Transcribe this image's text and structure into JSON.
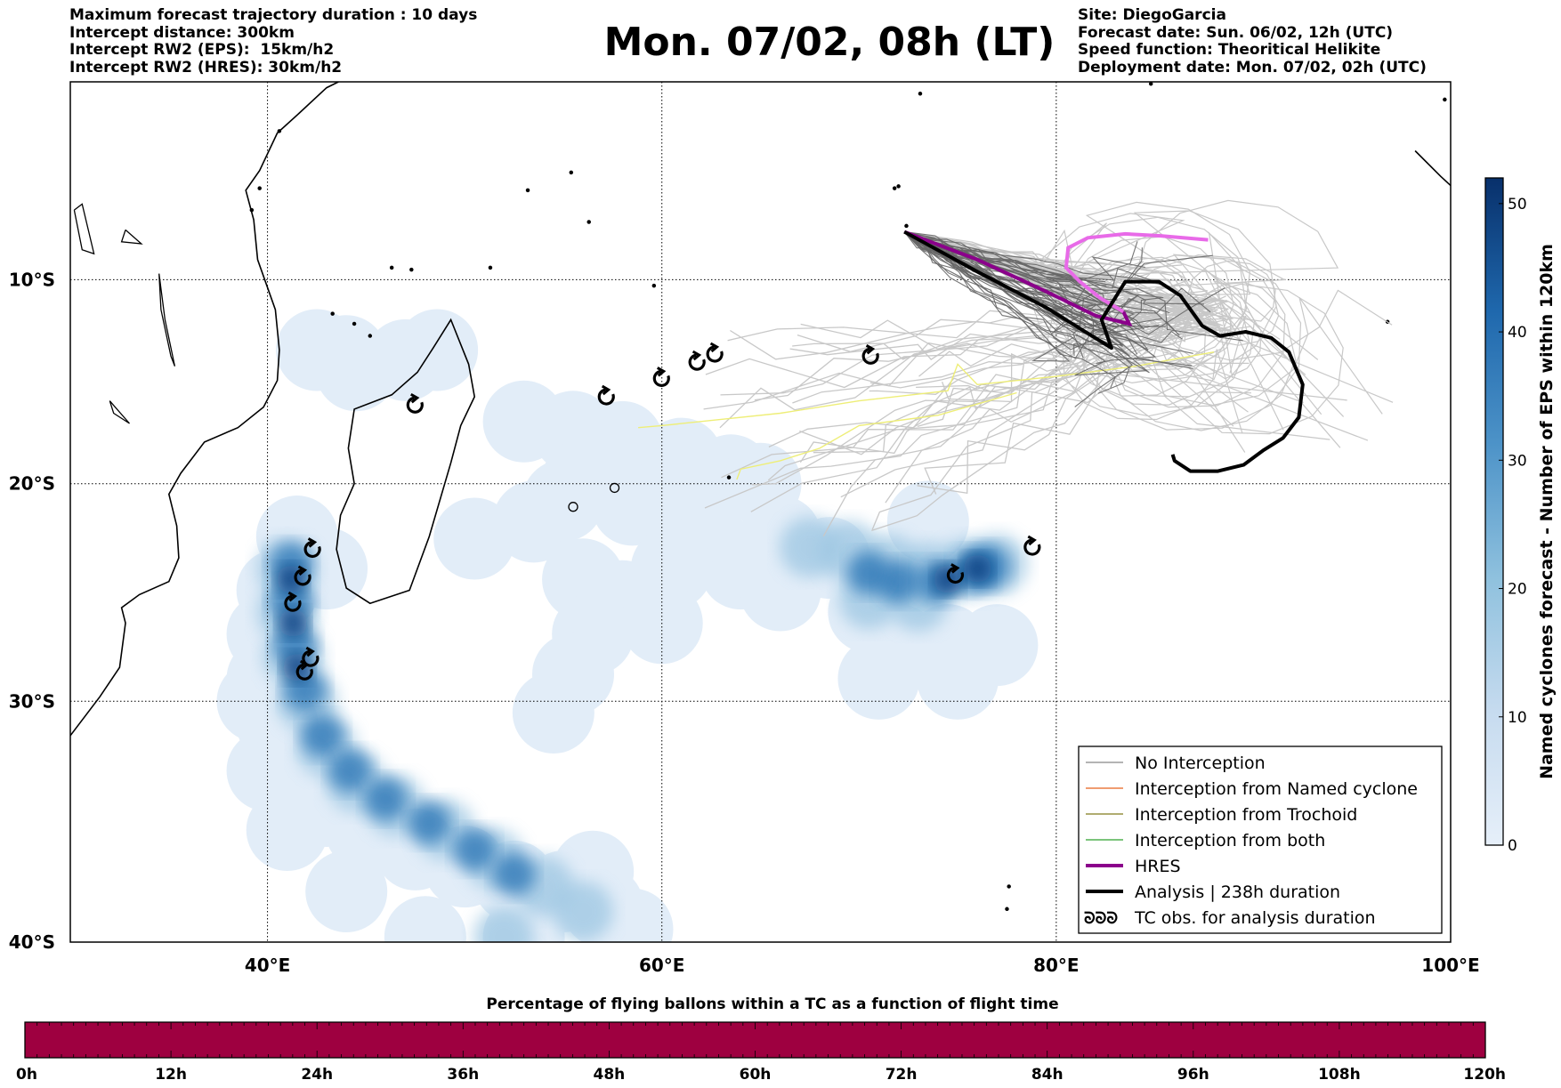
{
  "header": {
    "left_lines": [
      "Maximum forecast trajectory duration : 10 days",
      "Intercept distance: 300km",
      "Intercept RW2 (EPS):  15km/h2",
      "Intercept RW2 (HRES): 30km/h2"
    ],
    "right_lines": [
      "Site: DiegoGarcia",
      "Forecast date: Sun. 06/02, 12h (UTC)",
      "Speed function: Theoritical Helikite",
      "Deployment date: Mon. 07/02, 02h (UTC)"
    ],
    "title": "Mon. 07/02, 08h (LT)"
  },
  "map": {
    "lon_range": [
      30,
      100
    ],
    "lat_range": [
      -40,
      0
    ],
    "lat_labels": [
      "10°S",
      "20°S",
      "30°S",
      "40°S"
    ],
    "lon_labels": [
      "40°E",
      "60°E",
      "80°E",
      "100°E"
    ],
    "gridlines": true
  },
  "legend": {
    "items": [
      {
        "label": "No Interception",
        "color": "#888888"
      },
      {
        "label": "Interception from Named cyclone",
        "color": "#e8601c"
      },
      {
        "label": "Interception from Trochoid",
        "color": "#807a1a"
      },
      {
        "label": "Interception from both",
        "color": "#2ca02c"
      },
      {
        "label": "HRES",
        "color": "#8b008b"
      },
      {
        "label": "Analysis | 238h duration",
        "color": "#000000"
      },
      {
        "label": "TC obs. for analysis duration",
        "color": "#000000",
        "symbol": "ᘐᘐᘐ"
      }
    ]
  },
  "colorbar_right": {
    "label": "Named cyclones forecast - Number of EPS within 120km",
    "ticks": [
      "0",
      "10",
      "20",
      "30",
      "40",
      "50"
    ],
    "range": [
      0,
      52
    ]
  },
  "colorbar_bottom": {
    "title": "Percentage of flying ballons within a TC as a function of flight time",
    "ticks": [
      "0h",
      "12h",
      "24h",
      "36h",
      "48h",
      "60h",
      "72h",
      "84h",
      "96h",
      "108h",
      "120h"
    ],
    "fill_color": "#9e0040",
    "fill_fraction": 1.0
  },
  "colors": {
    "hres": "#8b008b",
    "hres_light": "#e86ae8",
    "analysis": "#000000",
    "eps_track": "#666666",
    "eps_track_light": "#c8c8c8",
    "trochoid_yellow": "#eeee77"
  },
  "tc_obs": [
    {
      "lon": 47.5,
      "lat": -16.2
    },
    {
      "lon": 57.2,
      "lat": -15.8
    },
    {
      "lon": 60.0,
      "lat": -14.9
    },
    {
      "lon": 61.8,
      "lat": -14.1
    },
    {
      "lon": 62.7,
      "lat": -13.7
    },
    {
      "lon": 70.6,
      "lat": -13.8
    },
    {
      "lon": 41.3,
      "lat": -25.6
    },
    {
      "lon": 41.8,
      "lat": -24.4
    },
    {
      "lon": 42.3,
      "lat": -23.1
    },
    {
      "lon": 41.9,
      "lat": -28.7
    },
    {
      "lon": 42.2,
      "lat": -28.1
    },
    {
      "lon": 74.9,
      "lat": -24.3
    },
    {
      "lon": 78.8,
      "lat": -23.0
    }
  ],
  "analysis_track": [
    [
      72.3,
      -7.6
    ],
    [
      76,
      -9.6
    ],
    [
      79.5,
      -11.4
    ],
    [
      82.8,
      -13.4
    ],
    [
      82.3,
      -12
    ],
    [
      83.5,
      -10.1
    ],
    [
      85.2,
      -10.1
    ],
    [
      86.3,
      -10.8
    ],
    [
      87.4,
      -12.3
    ],
    [
      88.3,
      -12.8
    ],
    [
      89.6,
      -12.6
    ],
    [
      90.9,
      -12.9
    ],
    [
      91.8,
      -13.6
    ],
    [
      92.5,
      -15.2
    ],
    [
      92.3,
      -16.8
    ],
    [
      91.5,
      -17.8
    ],
    [
      90.5,
      -18.4
    ],
    [
      89.5,
      -19.1
    ],
    [
      88.2,
      -19.4
    ],
    [
      86.8,
      -19.4
    ],
    [
      86,
      -18.9
    ],
    [
      85.9,
      -18.6
    ]
  ],
  "hres_track": [
    [
      72.3,
      -7.6
    ],
    [
      76,
      -9
    ],
    [
      79.5,
      -10.6
    ],
    [
      82,
      -11.8
    ],
    [
      83.7,
      -12.2
    ],
    [
      83.4,
      -11.6
    ],
    [
      82.2,
      -10.9
    ],
    [
      81.2,
      -10.1
    ],
    [
      80.5,
      -9.4
    ],
    [
      80.6,
      -8.4
    ],
    [
      81.6,
      -7.9
    ],
    [
      83.5,
      -7.7
    ],
    [
      85.3,
      -7.8
    ],
    [
      87.7,
      -8.0
    ]
  ],
  "eps_cluster_center": [
    82.5,
    -12.0
  ],
  "eps_start": [
    72.3,
    -7.6
  ]
}
